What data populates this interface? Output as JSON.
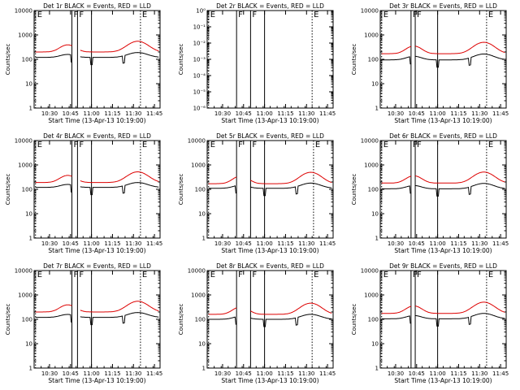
{
  "colors": {
    "events": "#000000",
    "lld": "#dd0000",
    "background": "#ffffff",
    "axis": "#000000"
  },
  "chart_data": [
    {
      "type": "line",
      "title": "Det 1r BLACK = Events, RED = LLD",
      "xlabel": "Start Time (13-Apr-13 10:19:00)",
      "ylabel": "Counts/sec",
      "log_y": true,
      "ylim": [
        1,
        10000
      ],
      "xlim_minutes_after_1019": [
        0,
        90
      ],
      "x_ticks": [
        "10:30",
        "10:45",
        "11:00",
        "11:15",
        "11:30",
        "11:45"
      ],
      "y_ticks": [
        "1",
        "10",
        "100",
        "1000",
        "10000"
      ],
      "markers": [
        {
          "label": "E",
          "time": "10:20"
        },
        {
          "label": "F",
          "time": "10:46"
        },
        {
          "label": "F",
          "time": "10:50"
        },
        {
          "label": "E",
          "time": "11:35"
        }
      ],
      "series": [
        {
          "name": "Events",
          "profile": "A",
          "level": 120,
          "amp": 70
        },
        {
          "name": "LLD",
          "profile": "A",
          "level": 200,
          "amp": 350
        }
      ],
      "empty": false
    },
    {
      "type": "line",
      "title": "Det 2r BLACK = Events, RED = LLD",
      "xlabel": "Start Time (13-Apr-13 10:19:00)",
      "ylabel": "Counts/sec",
      "log_y": true,
      "ylim": [
        1e-06,
        1
      ],
      "xlim_minutes_after_1019": [
        0,
        90
      ],
      "x_ticks": [
        "10:30",
        "10:45",
        "11:00",
        "11:15",
        "11:30",
        "11:45"
      ],
      "y_ticks": [
        "10⁻⁶",
        "10⁻⁵",
        "10⁻⁴",
        "10⁻³",
        "10⁻²",
        "10⁻¹",
        "10⁰"
      ],
      "markers": [
        {
          "label": "E",
          "time": "10:20"
        },
        {
          "label": "F",
          "time": "10:40"
        },
        {
          "label": "F",
          "time": "10:50"
        },
        {
          "label": "E",
          "time": "11:34"
        }
      ],
      "series": [],
      "empty": true
    },
    {
      "type": "line",
      "title": "Det 3r BLACK = Events, RED = LLD",
      "xlabel": "Start Time (13-Apr-13 10:19:00)",
      "ylabel": "Counts/sec",
      "log_y": true,
      "ylim": [
        1,
        10000
      ],
      "xlim_minutes_after_1019": [
        0,
        90
      ],
      "x_ticks": [
        "10:30",
        "10:45",
        "11:00",
        "11:15",
        "11:30",
        "11:45"
      ],
      "y_ticks": [
        "1",
        "10",
        "100",
        "1000",
        "10000"
      ],
      "markers": [
        {
          "label": "E",
          "time": "10:20"
        },
        {
          "label": "F",
          "time": "10:41"
        },
        {
          "label": "F",
          "time": "10:44"
        },
        {
          "label": "E",
          "time": "11:35"
        }
      ],
      "series": [
        {
          "name": "Events",
          "profile": "B",
          "level": 95,
          "amp": 70
        },
        {
          "name": "LLD",
          "profile": "B",
          "level": 170,
          "amp": 330
        }
      ],
      "empty": false
    },
    {
      "type": "line",
      "title": "Det 4r BLACK = Events, RED = LLD",
      "xlabel": "Start Time (13-Apr-13 10:19:00)",
      "ylabel": "Counts/sec",
      "log_y": true,
      "ylim": [
        1,
        10000
      ],
      "xlim_minutes_after_1019": [
        0,
        90
      ],
      "x_ticks": [
        "10:30",
        "10:45",
        "11:00",
        "11:15",
        "11:30",
        "11:45"
      ],
      "y_ticks": [
        "1",
        "10",
        "100",
        "1000",
        "10000"
      ],
      "markers": [
        {
          "label": "E",
          "time": "10:20"
        },
        {
          "label": "F",
          "time": "10:46"
        },
        {
          "label": "F",
          "time": "10:50"
        },
        {
          "label": "E",
          "time": "11:35"
        }
      ],
      "series": [
        {
          "name": "Events",
          "profile": "A",
          "level": 120,
          "amp": 70
        },
        {
          "name": "LLD",
          "profile": "A",
          "level": 190,
          "amp": 330
        }
      ],
      "empty": false
    },
    {
      "type": "line",
      "title": "Det 5r BLACK = Events, RED = LLD",
      "xlabel": "Start Time (13-Apr-13 10:19:00)",
      "ylabel": "Counts/sec",
      "log_y": true,
      "ylim": [
        1,
        10000
      ],
      "xlim_minutes_after_1019": [
        0,
        90
      ],
      "x_ticks": [
        "10:30",
        "10:45",
        "11:00",
        "11:15",
        "11:30",
        "11:45"
      ],
      "y_ticks": [
        "1",
        "10",
        "100",
        "1000",
        "10000"
      ],
      "markers": [
        {
          "label": "E",
          "time": "10:20"
        },
        {
          "label": "F",
          "time": "10:40"
        },
        {
          "label": "F",
          "time": "10:50"
        },
        {
          "label": "E",
          "time": "11:35"
        }
      ],
      "series": [
        {
          "name": "Events",
          "profile": "B",
          "level": 110,
          "amp": 70
        },
        {
          "name": "LLD",
          "profile": "B",
          "level": 170,
          "amp": 330
        }
      ],
      "empty": false
    },
    {
      "type": "line",
      "title": "Det 6r BLACK = Events, RED = LLD",
      "xlabel": "Start Time (13-Apr-13 10:19:00)",
      "ylabel": "Counts/sec",
      "log_y": true,
      "ylim": [
        1,
        10000
      ],
      "xlim_minutes_after_1019": [
        0,
        90
      ],
      "x_ticks": [
        "10:30",
        "10:45",
        "11:00",
        "11:15",
        "11:30",
        "11:45"
      ],
      "y_ticks": [
        "1",
        "10",
        "100",
        "1000",
        "10000"
      ],
      "markers": [
        {
          "label": "E",
          "time": "10:20"
        },
        {
          "label": "F",
          "time": "10:41"
        },
        {
          "label": "F",
          "time": "10:44"
        },
        {
          "label": "E",
          "time": "11:35"
        }
      ],
      "series": [
        {
          "name": "Events",
          "profile": "B",
          "level": 105,
          "amp": 70
        },
        {
          "name": "LLD",
          "profile": "B",
          "level": 180,
          "amp": 330
        }
      ],
      "empty": false
    },
    {
      "type": "line",
      "title": "Det 7r BLACK = Events, RED = LLD",
      "xlabel": "Start Time (13-Apr-13 10:19:00)",
      "ylabel": "Counts/sec",
      "log_y": true,
      "ylim": [
        1,
        10000
      ],
      "xlim_minutes_after_1019": [
        0,
        90
      ],
      "x_ticks": [
        "10:30",
        "10:45",
        "11:00",
        "11:15",
        "11:30",
        "11:45"
      ],
      "y_ticks": [
        "1",
        "10",
        "100",
        "1000",
        "10000"
      ],
      "markers": [
        {
          "label": "E",
          "time": "10:20"
        },
        {
          "label": "F",
          "time": "10:46"
        },
        {
          "label": "F",
          "time": "10:50"
        },
        {
          "label": "E",
          "time": "11:35"
        }
      ],
      "series": [
        {
          "name": "Events",
          "profile": "A",
          "level": 120,
          "amp": 70
        },
        {
          "name": "LLD",
          "profile": "A",
          "level": 200,
          "amp": 350
        }
      ],
      "empty": false
    },
    {
      "type": "line",
      "title": "Det 8r BLACK = Events, RED = LLD",
      "xlabel": "Start Time (13-Apr-13 10:19:00)",
      "ylabel": "Counts/sec",
      "log_y": true,
      "ylim": [
        1,
        10000
      ],
      "xlim_minutes_after_1019": [
        0,
        90
      ],
      "x_ticks": [
        "10:30",
        "10:45",
        "11:00",
        "11:15",
        "11:30",
        "11:45"
      ],
      "y_ticks": [
        "1",
        "10",
        "100",
        "1000",
        "10000"
      ],
      "markers": [
        {
          "label": "E",
          "time": "10:20"
        },
        {
          "label": "F",
          "time": "10:40"
        },
        {
          "label": "F",
          "time": "10:50"
        },
        {
          "label": "E",
          "time": "11:34"
        }
      ],
      "series": [
        {
          "name": "Events",
          "profile": "B",
          "level": 100,
          "amp": 60
        },
        {
          "name": "LLD",
          "profile": "B",
          "level": 160,
          "amp": 300
        }
      ],
      "empty": false
    },
    {
      "type": "line",
      "title": "Det 9r BLACK = Events, RED = LLD",
      "xlabel": "Start Time (13-Apr-13 10:19:00)",
      "ylabel": "Counts/sec",
      "log_y": true,
      "ylim": [
        1,
        10000
      ],
      "xlim_minutes_after_1019": [
        0,
        90
      ],
      "x_ticks": [
        "10:30",
        "10:45",
        "11:00",
        "11:15",
        "11:30",
        "11:45"
      ],
      "y_ticks": [
        "1",
        "10",
        "100",
        "1000",
        "10000"
      ],
      "markers": [
        {
          "label": "E",
          "time": "10:20"
        },
        {
          "label": "F",
          "time": "10:41"
        },
        {
          "label": "F",
          "time": "10:44"
        },
        {
          "label": "E",
          "time": "11:35"
        }
      ],
      "series": [
        {
          "name": "Events",
          "profile": "B",
          "level": 105,
          "amp": 70
        },
        {
          "name": "LLD",
          "profile": "B",
          "level": 175,
          "amp": 330
        }
      ],
      "empty": false
    }
  ]
}
